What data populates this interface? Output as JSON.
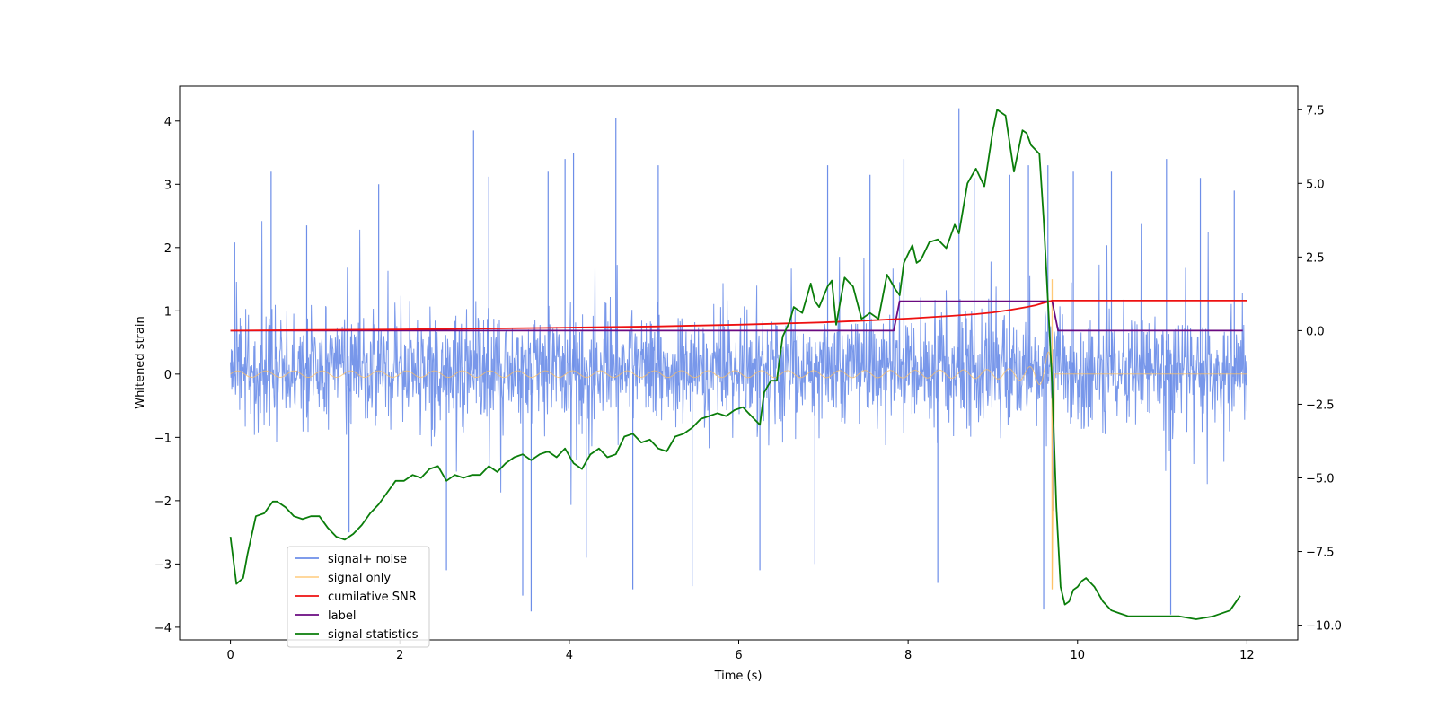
{
  "chart_data": {
    "type": "line",
    "title": "",
    "xlabel": "Time (s)",
    "ylabel": "Whitened strain",
    "ylabel_right": "",
    "xlim": [
      -0.6,
      12.6
    ],
    "ylim": [
      -4.2,
      4.55
    ],
    "ylim_right": [
      -10.5,
      8.3
    ],
    "x_ticks": [
      0,
      2,
      4,
      6,
      8,
      10,
      12
    ],
    "x_tick_labels": [
      "0",
      "2",
      "4",
      "6",
      "8",
      "10",
      "12"
    ],
    "y_ticks": [
      -4,
      -3,
      -2,
      -1,
      0,
      1,
      2,
      3,
      4
    ],
    "y_tick_labels": [
      "−4",
      "−3",
      "−2",
      "−1",
      "0",
      "1",
      "2",
      "3",
      "4"
    ],
    "y_right_ticks": [
      -10,
      -7.5,
      -5,
      -2.5,
      0,
      2.5,
      5,
      7.5
    ],
    "y_right_tick_labels": [
      "−10.0",
      "−7.5",
      "−5.0",
      "−2.5",
      "0.0",
      "2.5",
      "5.0",
      "7.5"
    ],
    "legend_position": "lower-left",
    "colors": {
      "noise": "#6d8ee8",
      "signal": "#ffbf5f",
      "snr": "#ee1111",
      "label": "#6a0a80",
      "stats": "#0a7d0a"
    },
    "series": [
      {
        "name": "signal+ noise",
        "key": "noise",
        "axis": "left",
        "kind": "noise",
        "x_range": [
          0,
          12
        ],
        "envelope_upper": 2.1,
        "envelope_lower": -1.9,
        "spikes": [
          {
            "x": 0.05,
            "y": 2.08
          },
          {
            "x": 0.48,
            "y": 3.2
          },
          {
            "x": 0.9,
            "y": 2.35
          },
          {
            "x": 1.75,
            "y": 3.0
          },
          {
            "x": 2.55,
            "y": -3.1
          },
          {
            "x": 2.87,
            "y": 3.85
          },
          {
            "x": 3.05,
            "y": 3.12
          },
          {
            "x": 3.45,
            "y": -3.5
          },
          {
            "x": 3.55,
            "y": -3.75
          },
          {
            "x": 3.75,
            "y": 3.2
          },
          {
            "x": 3.95,
            "y": 3.4
          },
          {
            "x": 4.05,
            "y": 3.5
          },
          {
            "x": 4.55,
            "y": 4.05
          },
          {
            "x": 4.75,
            "y": -3.4
          },
          {
            "x": 5.05,
            "y": 3.3
          },
          {
            "x": 5.45,
            "y": -3.35
          },
          {
            "x": 6.25,
            "y": -3.1
          },
          {
            "x": 7.05,
            "y": 3.3
          },
          {
            "x": 7.55,
            "y": 3.15
          },
          {
            "x": 7.95,
            "y": 3.4
          },
          {
            "x": 8.35,
            "y": -3.3
          },
          {
            "x": 8.6,
            "y": 4.2
          },
          {
            "x": 8.78,
            "y": 3.1
          },
          {
            "x": 9.2,
            "y": 3.15
          },
          {
            "x": 9.42,
            "y": 3.3
          },
          {
            "x": 9.6,
            "y": -3.72
          },
          {
            "x": 9.65,
            "y": 3.3
          },
          {
            "x": 9.95,
            "y": 3.2
          },
          {
            "x": 10.4,
            "y": 3.2
          },
          {
            "x": 11.05,
            "y": 3.4
          },
          {
            "x": 11.1,
            "y": -3.8
          },
          {
            "x": 11.45,
            "y": 3.1
          },
          {
            "x": 11.85,
            "y": 2.9
          },
          {
            "x": 1.4,
            "y": -2.5
          },
          {
            "x": 4.2,
            "y": -2.9
          },
          {
            "x": 6.9,
            "y": -3.0
          }
        ]
      },
      {
        "name": "signal only",
        "key": "signal",
        "axis": "left",
        "kind": "chirp",
        "x_range": [
          0,
          12
        ],
        "merger_time": 9.7,
        "amp_start": 0.05,
        "amp_peak": 1.6,
        "ringdown_min": -3.4
      },
      {
        "name": "cumilative SNR",
        "key": "snr",
        "axis": "right",
        "x": [
          0,
          1,
          2,
          3,
          4,
          5,
          6,
          7,
          7.5,
          8,
          8.5,
          8.8,
          9.0,
          9.2,
          9.4,
          9.5,
          9.6,
          9.65,
          9.7,
          9.72,
          10,
          11,
          12
        ],
        "y": [
          0.0,
          0.02,
          0.04,
          0.07,
          0.1,
          0.14,
          0.2,
          0.28,
          0.34,
          0.41,
          0.5,
          0.56,
          0.62,
          0.7,
          0.8,
          0.86,
          0.94,
          0.98,
          1.02,
          1.02,
          1.02,
          1.02,
          1.02
        ]
      },
      {
        "name": "label",
        "key": "label",
        "axis": "right",
        "x": [
          0,
          7.83,
          7.9,
          9.7,
          9.77,
          11.95
        ],
        "y": [
          0,
          0,
          1,
          1,
          0,
          0
        ]
      },
      {
        "name": "signal statistics",
        "key": "stats",
        "axis": "right",
        "x": [
          0,
          0.07,
          0.15,
          0.2,
          0.3,
          0.4,
          0.45,
          0.5,
          0.55,
          0.65,
          0.75,
          0.85,
          0.95,
          1.05,
          1.15,
          1.25,
          1.35,
          1.45,
          1.55,
          1.65,
          1.75,
          1.85,
          1.95,
          2.05,
          2.15,
          2.25,
          2.35,
          2.45,
          2.55,
          2.65,
          2.75,
          2.85,
          2.95,
          3.05,
          3.15,
          3.25,
          3.35,
          3.45,
          3.55,
          3.65,
          3.75,
          3.85,
          3.95,
          4.05,
          4.15,
          4.25,
          4.35,
          4.45,
          4.55,
          4.65,
          4.75,
          4.85,
          4.95,
          5.05,
          5.15,
          5.25,
          5.35,
          5.45,
          5.55,
          5.65,
          5.75,
          5.85,
          5.95,
          6.05,
          6.15,
          6.25,
          6.3,
          6.38,
          6.45,
          6.52,
          6.6,
          6.65,
          6.75,
          6.85,
          6.9,
          6.95,
          7.05,
          7.1,
          7.15,
          7.25,
          7.35,
          7.45,
          7.55,
          7.65,
          7.75,
          7.85,
          7.9,
          7.95,
          8.05,
          8.1,
          8.15,
          8.25,
          8.35,
          8.45,
          8.55,
          8.6,
          8.7,
          8.8,
          8.9,
          9.0,
          9.05,
          9.15,
          9.25,
          9.35,
          9.4,
          9.45,
          9.55,
          9.6,
          9.65,
          9.7,
          9.75,
          9.8,
          9.85,
          9.9,
          9.95,
          10.0,
          10.05,
          10.1,
          10.2,
          10.3,
          10.4,
          10.5,
          10.6,
          10.8,
          11.0,
          11.2,
          11.4,
          11.6,
          11.8,
          11.92
        ],
        "y": [
          -7.0,
          -8.6,
          -8.4,
          -7.6,
          -6.3,
          -6.2,
          -6.0,
          -5.8,
          -5.8,
          -6.0,
          -6.3,
          -6.4,
          -6.3,
          -6.3,
          -6.7,
          -7.0,
          -7.1,
          -6.9,
          -6.6,
          -6.2,
          -5.9,
          -5.5,
          -5.1,
          -5.1,
          -4.9,
          -5.0,
          -4.7,
          -4.6,
          -5.1,
          -4.9,
          -5.0,
          -4.9,
          -4.9,
          -4.6,
          -4.8,
          -4.5,
          -4.3,
          -4.2,
          -4.4,
          -4.2,
          -4.1,
          -4.3,
          -4.0,
          -4.5,
          -4.7,
          -4.2,
          -4.0,
          -4.3,
          -4.2,
          -3.6,
          -3.5,
          -3.8,
          -3.7,
          -4.0,
          -4.1,
          -3.6,
          -3.5,
          -3.3,
          -3.0,
          -2.9,
          -2.8,
          -2.9,
          -2.7,
          -2.6,
          -2.9,
          -3.2,
          -2.1,
          -1.7,
          -1.7,
          -0.2,
          0.3,
          0.8,
          0.6,
          1.6,
          1.0,
          0.8,
          1.5,
          1.7,
          0.2,
          1.8,
          1.5,
          0.4,
          0.6,
          0.4,
          1.9,
          1.4,
          1.2,
          2.3,
          2.9,
          2.3,
          2.4,
          3.0,
          3.1,
          2.8,
          3.6,
          3.3,
          5.0,
          5.5,
          4.9,
          6.8,
          7.5,
          7.3,
          5.4,
          6.8,
          6.7,
          6.3,
          6.0,
          3.8,
          1.0,
          -1.8,
          -6.0,
          -8.7,
          -9.3,
          -9.2,
          -8.8,
          -8.7,
          -8.5,
          -8.4,
          -8.7,
          -9.2,
          -9.5,
          -9.6,
          -9.7,
          -9.7,
          -9.7,
          -9.7,
          -9.8,
          -9.7,
          -9.5,
          -9.0
        ]
      }
    ]
  }
}
